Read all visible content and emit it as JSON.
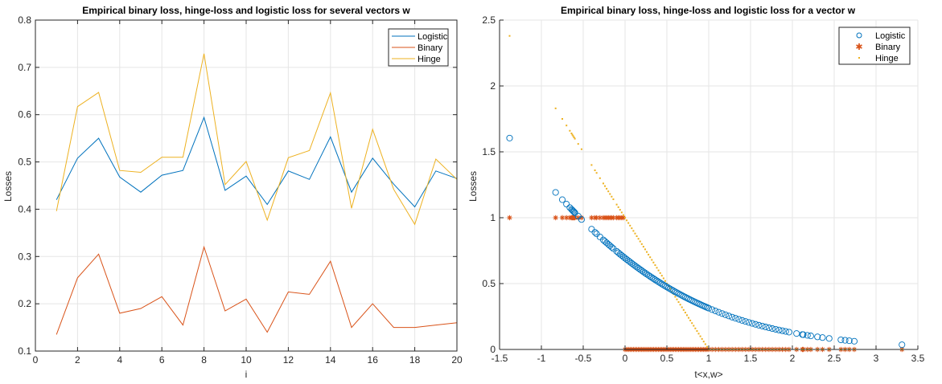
{
  "chart_data": [
    {
      "type": "line",
      "title": "Empirical binary  loss,  hinge-loss  and  logistic  loss for several vectors w",
      "xlabel": "i",
      "ylabel": "Losses",
      "xlim": [
        0,
        20
      ],
      "ylim": [
        0.1,
        0.8
      ],
      "xticks": [
        0,
        2,
        4,
        6,
        8,
        10,
        12,
        14,
        16,
        18,
        20
      ],
      "yticks": [
        0.1,
        0.2,
        0.3,
        0.4,
        0.5,
        0.6,
        0.7,
        0.8
      ],
      "xtick_labels": [
        "0",
        "2",
        "4",
        "6",
        "8",
        "10",
        "12",
        "14",
        "16",
        "18",
        "20"
      ],
      "ytick_labels": [
        "0.1",
        "0.2",
        "0.3",
        "0.4",
        "0.5",
        "0.6",
        "0.7",
        "0.8"
      ],
      "grid": true,
      "legend_position": "top-right",
      "x": [
        1,
        2,
        3,
        4,
        5,
        6,
        7,
        8,
        9,
        10,
        11,
        12,
        13,
        14,
        15,
        16,
        17,
        18,
        19,
        20
      ],
      "series": [
        {
          "name": "Logistic",
          "color": "#0072bd",
          "values": [
            0.42,
            0.508,
            0.55,
            0.468,
            0.436,
            0.472,
            0.482,
            0.594,
            0.44,
            0.47,
            0.41,
            0.481,
            0.463,
            0.553,
            0.436,
            0.508,
            0.453,
            0.405,
            0.481,
            0.465
          ]
        },
        {
          "name": "Binary",
          "color": "#d95319",
          "values": [
            0.135,
            0.255,
            0.305,
            0.18,
            0.19,
            0.215,
            0.155,
            0.32,
            0.185,
            0.21,
            0.14,
            0.225,
            0.22,
            0.29,
            0.15,
            0.2,
            0.15,
            0.15,
            0.155,
            0.16
          ]
        },
        {
          "name": "Hinge",
          "color": "#edb120",
          "values": [
            0.396,
            0.617,
            0.647,
            0.482,
            0.478,
            0.51,
            0.51,
            0.729,
            0.452,
            0.501,
            0.377,
            0.509,
            0.524,
            0.646,
            0.402,
            0.569,
            0.442,
            0.368,
            0.506,
            0.463
          ]
        }
      ]
    },
    {
      "type": "scatter",
      "title": "Empirical binary  loss,  hinge-loss  and  logistic  loss for a vector w",
      "xlabel": "t<x,w>",
      "ylabel": "Losses",
      "xlim": [
        -1.5,
        3.5
      ],
      "ylim": [
        0,
        2.5
      ],
      "xticks": [
        -1.5,
        -1,
        -0.5,
        0,
        0.5,
        1,
        1.5,
        2,
        2.5,
        3,
        3.5
      ],
      "yticks": [
        0,
        0.5,
        1,
        1.5,
        2,
        2.5
      ],
      "xtick_labels": [
        "-1.5",
        "-1",
        "-0.5",
        "0",
        "0.5",
        "1",
        "1.5",
        "2",
        "2.5",
        "3",
        "3.5"
      ],
      "ytick_labels": [
        "0",
        "0.5",
        "1",
        "1.5",
        "2",
        "2.5"
      ],
      "grid": true,
      "legend_position": "top-right",
      "x": [
        -1.38,
        -0.83,
        -0.75,
        -0.7,
        -0.66,
        -0.64,
        -0.63,
        -0.62,
        -0.61,
        -0.6,
        -0.56,
        -0.52,
        -0.4,
        -0.36,
        -0.34,
        -0.3,
        -0.26,
        -0.24,
        -0.22,
        -0.2,
        -0.18,
        -0.16,
        -0.14,
        -0.1,
        -0.08,
        -0.06,
        -0.04,
        -0.02,
        0.0,
        0.02,
        0.04,
        0.06,
        0.08,
        0.1,
        0.12,
        0.14,
        0.16,
        0.18,
        0.2,
        0.22,
        0.24,
        0.26,
        0.28,
        0.3,
        0.32,
        0.34,
        0.36,
        0.38,
        0.4,
        0.42,
        0.44,
        0.46,
        0.48,
        0.5,
        0.52,
        0.54,
        0.56,
        0.58,
        0.6,
        0.62,
        0.64,
        0.66,
        0.68,
        0.7,
        0.72,
        0.74,
        0.76,
        0.78,
        0.8,
        0.82,
        0.84,
        0.86,
        0.88,
        0.9,
        0.92,
        0.94,
        0.96,
        0.98,
        1.0,
        1.04,
        1.08,
        1.12,
        1.16,
        1.2,
        1.24,
        1.28,
        1.32,
        1.36,
        1.4,
        1.44,
        1.48,
        1.52,
        1.56,
        1.6,
        1.64,
        1.68,
        1.72,
        1.76,
        1.8,
        1.84,
        1.88,
        1.92,
        1.96,
        2.05,
        2.12,
        2.13,
        2.18,
        2.22,
        2.3,
        2.36,
        2.44,
        2.58,
        2.63,
        2.68,
        2.74,
        3.31
      ],
      "series": [
        {
          "name": "Logistic",
          "marker": "circle",
          "color": "#0072bd",
          "function": "ln(1+exp(-x))"
        },
        {
          "name": "Binary",
          "marker": "asterisk",
          "color": "#d95319",
          "function": "1 if x<0 else 0"
        },
        {
          "name": "Hinge",
          "marker": "point",
          "color": "#edb120",
          "function": "max(0, 1-x)"
        }
      ]
    }
  ]
}
